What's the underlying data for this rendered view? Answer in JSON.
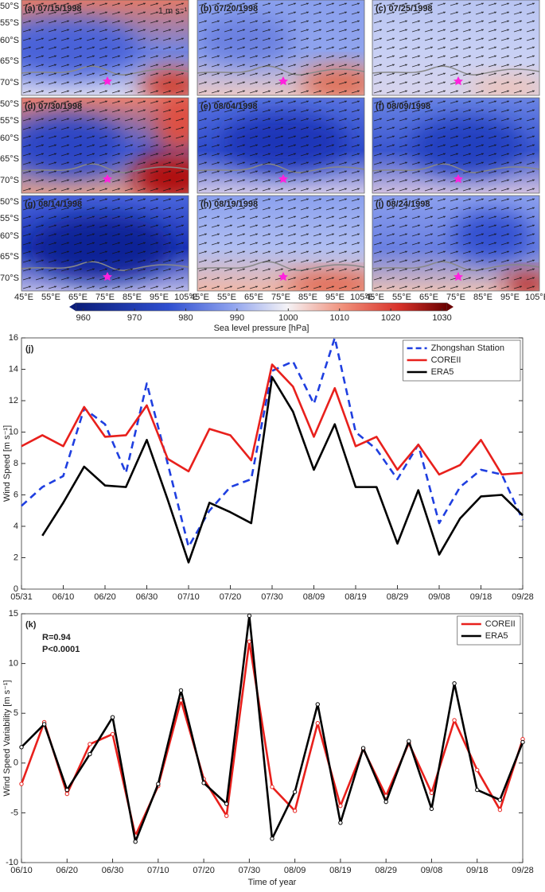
{
  "maps": {
    "panels": [
      "(a) 07/15/1998",
      "(b) 07/20/1998",
      "(c) 07/25/1998",
      "(d) 07/30/1998",
      "(e) 08/04/1998",
      "(f) 08/09/1998",
      "(g) 08/14/1998",
      "(h) 08/19/1998",
      "(i) 08/24/1998"
    ],
    "lat_labels": [
      "50°S",
      "55°S",
      "60°S",
      "65°S",
      "70°S"
    ],
    "lon_labels": [
      "45°E",
      "55°E",
      "65°E",
      "75°E",
      "85°E",
      "95°E",
      "105°E"
    ],
    "scale_label": "1 m s⁻¹"
  },
  "chart_data": [
    {
      "type": "colorbar",
      "label": "Sea level pressure [hPa]",
      "xlim": [
        958.5,
        1031
      ],
      "xticks": [
        960,
        970,
        980,
        990,
        1000,
        1010,
        1020,
        1030
      ]
    },
    {
      "type": "line",
      "panel_label": "(j)",
      "ylabel": "Wind Speed [m s⁻¹]",
      "categories": [
        "05/31",
        null,
        "06/10",
        null,
        "06/20",
        null,
        "06/30",
        null,
        "07/10",
        null,
        "07/20",
        null,
        "07/30",
        null,
        "08/09",
        null,
        "08/19",
        null,
        "08/29",
        null,
        "09/08",
        null,
        "09/18",
        null,
        "09/28"
      ],
      "ylim": [
        0,
        16
      ],
      "yticks": [
        0,
        2,
        4,
        6,
        8,
        10,
        12,
        14,
        16
      ],
      "legend": "upper right",
      "series": [
        {
          "name": "Zhongshan Station",
          "color": "#1f3fe0",
          "dash": true,
          "values": [
            5.3,
            6.5,
            7.2,
            11.5,
            10.5,
            7.4,
            13.1,
            8.0,
            2.7,
            5.0,
            6.5,
            7.0,
            13.9,
            14.5,
            11.8,
            16.0,
            10.0,
            8.9,
            7.0,
            9.2,
            4.2,
            6.5,
            7.6,
            7.3,
            4.4
          ]
        },
        {
          "name": "COREII",
          "color": "#e8201c",
          "dash": false,
          "values": [
            9.1,
            9.8,
            9.1,
            11.6,
            9.7,
            9.8,
            11.7,
            8.3,
            7.5,
            10.2,
            9.8,
            8.2,
            14.3,
            12.9,
            9.7,
            12.8,
            9.1,
            9.7,
            7.6,
            9.2,
            7.3,
            7.9,
            9.5,
            7.3,
            7.4
          ]
        },
        {
          "name": "ERA5",
          "color": "#000000",
          "dash": false,
          "values": [
            null,
            3.4,
            5.5,
            7.8,
            6.6,
            6.5,
            9.5,
            5.7,
            1.7,
            5.5,
            4.9,
            4.2,
            13.5,
            11.3,
            7.6,
            10.5,
            6.5,
            6.5,
            2.9,
            6.3,
            2.2,
            4.5,
            5.9,
            6.0,
            4.7
          ]
        }
      ]
    },
    {
      "type": "line",
      "panel_label": "(k)",
      "annotations": [
        "R=0.94",
        "P<0.0001"
      ],
      "xlabel": "Time of year",
      "ylabel": "Wind Speed Variability [m s⁻¹]",
      "categories": [
        "06/10",
        null,
        "06/20",
        null,
        "06/30",
        null,
        "07/10",
        null,
        "07/20",
        null,
        "07/30",
        null,
        "08/09",
        null,
        "08/19",
        null,
        "08/29",
        null,
        "09/08",
        null,
        "09/18",
        null,
        "09/28"
      ],
      "ylim": [
        -10,
        15
      ],
      "yticks": [
        -10,
        -5,
        0,
        5,
        10,
        15
      ],
      "legend": "upper right",
      "markers": true,
      "series": [
        {
          "name": "COREII",
          "color": "#e8201c",
          "dash": false,
          "values": [
            -2.1,
            4.1,
            -3.1,
            1.9,
            2.9,
            -7.3,
            -2.3,
            6.3,
            -1.6,
            -5.3,
            12.2,
            -2.4,
            -4.8,
            4.0,
            -4.3,
            1.4,
            -3.3,
            2.0,
            -3.0,
            4.3,
            -0.7,
            -4.7,
            2.4
          ]
        },
        {
          "name": "ERA5",
          "color": "#000000",
          "dash": false,
          "values": [
            1.6,
            3.9,
            -2.7,
            0.9,
            4.6,
            -7.9,
            -2.1,
            7.3,
            -2.0,
            -4.1,
            14.8,
            -7.6,
            -2.9,
            5.9,
            -6.0,
            1.5,
            -3.9,
            2.2,
            -4.6,
            8.0,
            -2.7,
            -3.7,
            2.1
          ]
        }
      ]
    }
  ]
}
